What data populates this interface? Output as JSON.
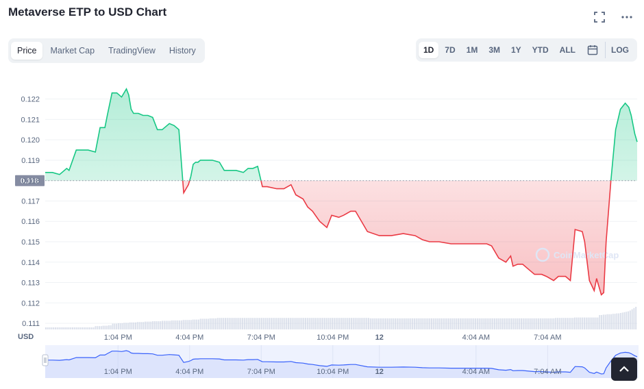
{
  "header": {
    "title": "Metaverse ETP to USD Chart"
  },
  "icons": {
    "fullscreen": "fullscreen-icon",
    "more": "more-icon",
    "calendar": "calendar-icon",
    "scroll_top": "chevron-up-icon",
    "drag_handle": "drag-handle-icon",
    "watermark": "coinmarketcap-logo"
  },
  "tabs": [
    {
      "label": "Price",
      "active": true
    },
    {
      "label": "Market Cap",
      "active": false
    },
    {
      "label": "TradingView",
      "active": false
    },
    {
      "label": "History",
      "active": false
    }
  ],
  "ranges": [
    {
      "label": "1D",
      "active": true
    },
    {
      "label": "7D",
      "active": false
    },
    {
      "label": "1M",
      "active": false
    },
    {
      "label": "3M",
      "active": false
    },
    {
      "label": "1Y",
      "active": false
    },
    {
      "label": "YTD",
      "active": false
    },
    {
      "label": "ALL",
      "active": false
    }
  ],
  "log_label": "LOG",
  "watermark_text": "CoinMarketCap",
  "colors": {
    "up": "#16c784",
    "down": "#ea3943",
    "navigator": "#3861fb",
    "volume": "#cfd6e4",
    "ref_badge": "#858ca2"
  },
  "chart_data": {
    "type": "line",
    "currency_label": "USD",
    "y_ticks": [
      0.111,
      0.112,
      0.113,
      0.114,
      0.115,
      0.116,
      0.117,
      0.118,
      0.119,
      0.12,
      0.121,
      0.122
    ],
    "ylim": [
      0.1107,
      0.1235
    ],
    "reference_price": 0.118,
    "reference_label": "0.118",
    "x_ticks": [
      {
        "label": "1:04 PM",
        "t": 3.05
      },
      {
        "label": "4:04 PM",
        "t": 6.05
      },
      {
        "label": "7:04 PM",
        "t": 9.05
      },
      {
        "label": "10:04 PM",
        "t": 12.05
      },
      {
        "label": "12",
        "t": 14.0
      },
      {
        "label": "4:04 AM",
        "t": 18.05
      },
      {
        "label": "7:04 AM",
        "t": 21.05
      }
    ],
    "x_range": [
      0,
      24.8
    ],
    "series": [
      {
        "x": [
          0,
          0.3,
          0.6,
          0.9,
          1.0,
          1.3,
          1.5,
          1.8,
          2.1,
          2.3,
          2.5,
          2.6,
          2.8,
          3.0,
          3.2,
          3.4,
          3.5,
          3.6,
          3.7,
          3.9,
          4.1,
          4.3,
          4.5,
          4.7,
          4.9,
          5.2,
          5.4,
          5.6,
          5.8,
          6.0,
          6.1,
          6.2,
          6.3,
          6.4,
          6.5,
          6.8,
          7.0,
          7.3,
          7.5,
          7.8,
          8.0,
          8.3,
          8.5,
          8.7,
          8.9,
          9.1,
          9.3,
          9.7,
          10.0,
          10.3,
          10.5,
          10.8,
          11.0,
          11.2,
          11.5,
          11.8,
          12.0,
          12.3,
          12.5,
          12.8,
          13.0,
          13.5,
          14.0,
          14.5,
          15.0,
          15.5,
          15.8,
          16.1,
          16.5,
          17.0,
          17.5,
          18.0,
          18.5,
          18.7,
          19.0,
          19.3,
          19.5,
          19.6,
          19.8,
          20.0,
          20.3,
          20.5,
          20.8,
          21.0,
          21.3,
          21.5,
          21.8,
          22.0,
          22.2,
          22.5,
          22.6,
          22.8,
          23.0,
          23.1,
          23.3,
          23.4,
          23.5,
          23.7,
          23.9,
          24.1,
          24.3,
          24.45,
          24.55,
          24.7,
          24.8
        ],
        "values": [
          0.1184,
          0.1184,
          0.1183,
          0.1186,
          0.1185,
          0.1195,
          0.1195,
          0.1195,
          0.1194,
          0.1206,
          0.1206,
          0.1212,
          0.1223,
          0.1223,
          0.1221,
          0.1225,
          0.1222,
          0.1215,
          0.1213,
          0.1213,
          0.1212,
          0.1212,
          0.1211,
          0.1205,
          0.1205,
          0.1208,
          0.1207,
          0.1205,
          0.1174,
          0.1178,
          0.1182,
          0.1188,
          0.1189,
          0.1189,
          0.119,
          0.119,
          0.119,
          0.1189,
          0.1185,
          0.1185,
          0.1185,
          0.1184,
          0.1186,
          0.1186,
          0.1187,
          0.1177,
          0.1177,
          0.1176,
          0.1176,
          0.1178,
          0.1173,
          0.1171,
          0.1167,
          0.1165,
          0.116,
          0.1157,
          0.1163,
          0.1162,
          0.1163,
          0.1165,
          0.1165,
          0.1155,
          0.1153,
          0.1153,
          0.1154,
          0.1153,
          0.1151,
          0.115,
          0.115,
          0.1149,
          0.1149,
          0.1149,
          0.1149,
          0.1148,
          0.1142,
          0.114,
          0.1143,
          0.1138,
          0.1139,
          0.1139,
          0.1136,
          0.1134,
          0.1134,
          0.1133,
          0.1131,
          0.1133,
          0.1133,
          0.1131,
          0.1156,
          0.1155,
          0.115,
          0.1131,
          0.1126,
          0.1132,
          0.1124,
          0.1125,
          0.115,
          0.118,
          0.1205,
          0.1215,
          0.1218,
          0.1216,
          0.1212,
          0.1203,
          0.1199
        ]
      }
    ],
    "volume": [
      0.05,
      0.05,
      0.05,
      0.05,
      0.05,
      0.05,
      0.05,
      0.05,
      0.05,
      0.05,
      0.05,
      0.05,
      0.05,
      0.05,
      0.05,
      0.05,
      0.05,
      0.05,
      0.05,
      0.05,
      0.05,
      0.05,
      0.05,
      0.05,
      0.05,
      0.05,
      0.08,
      0.08,
      0.08,
      0.08,
      0.09,
      0.09,
      0.09,
      0.1,
      0.1,
      0.14,
      0.14,
      0.14,
      0.15,
      0.15,
      0.15,
      0.16,
      0.16,
      0.16,
      0.17,
      0.17,
      0.17,
      0.17,
      0.18,
      0.18,
      0.18,
      0.18,
      0.19,
      0.19,
      0.19,
      0.19,
      0.2,
      0.2,
      0.2,
      0.2,
      0.2,
      0.21,
      0.21,
      0.21,
      0.21,
      0.21,
      0.22,
      0.22,
      0.22,
      0.22,
      0.22,
      0.22,
      0.23,
      0.23,
      0.23,
      0.23,
      0.23,
      0.24,
      0.24,
      0.24,
      0.24,
      0.26,
      0.26,
      0.26,
      0.26,
      0.26,
      0.27,
      0.27,
      0.27,
      0.27,
      0.28,
      0.28,
      0.28,
      0.28,
      0.28,
      0.28,
      0.28,
      0.28,
      0.28,
      0.28,
      0.28,
      0.28,
      0.28,
      0.28,
      0.28,
      0.28,
      0.28,
      0.28,
      0.28,
      0.28,
      0.28,
      0.28,
      0.28,
      0.28,
      0.28,
      0.28,
      0.28,
      0.28,
      0.28,
      0.28,
      0.28,
      0.28,
      0.28,
      0.28,
      0.28,
      0.28,
      0.28,
      0.28,
      0.28,
      0.28,
      0.28,
      0.28,
      0.28,
      0.28,
      0.28,
      0.28,
      0.28,
      0.28,
      0.28,
      0.28,
      0.28,
      0.28,
      0.28,
      0.28,
      0.28,
      0.28,
      0.28,
      0.28,
      0.28,
      0.28,
      0.28,
      0.28,
      0.28,
      0.28,
      0.28,
      0.28,
      0.28,
      0.28,
      0.28,
      0.28,
      0.28,
      0.28,
      0.28,
      0.28,
      0.28,
      0.28,
      0.28,
      0.28,
      0.28,
      0.28,
      0.27,
      0.27,
      0.27,
      0.27,
      0.27,
      0.27,
      0.27,
      0.27,
      0.27,
      0.27,
      0.27,
      0.27,
      0.27,
      0.27,
      0.27,
      0.27,
      0.27,
      0.27,
      0.27,
      0.27,
      0.27,
      0.27,
      0.27,
      0.27,
      0.27,
      0.27,
      0.27,
      0.27,
      0.27,
      0.27,
      0.27,
      0.27,
      0.27,
      0.27,
      0.27,
      0.27,
      0.27,
      0.27,
      0.27,
      0.27,
      0.27,
      0.27,
      0.27,
      0.27,
      0.27,
      0.27,
      0.27,
      0.27,
      0.27,
      0.27,
      0.27,
      0.27,
      0.27,
      0.27,
      0.27,
      0.27,
      0.27,
      0.27,
      0.27,
      0.27,
      0.27,
      0.27,
      0.27,
      0.27,
      0.27,
      0.27,
      0.27,
      0.27,
      0.27,
      0.27,
      0.27,
      0.27,
      0.27,
      0.27,
      0.27,
      0.27,
      0.27,
      0.27,
      0.27,
      0.27,
      0.27,
      0.27,
      0.27,
      0.27,
      0.27,
      0.27,
      0.27,
      0.27,
      0.27,
      0.27,
      0.27,
      0.27,
      0.27,
      0.27,
      0.27,
      0.27,
      0.27,
      0.28,
      0.28,
      0.28,
      0.28,
      0.28,
      0.28,
      0.28,
      0.28,
      0.28,
      0.28,
      0.29,
      0.29,
      0.29,
      0.29,
      0.29,
      0.29,
      0.29,
      0.29,
      0.29,
      0.29,
      0.29,
      0.29,
      0.29,
      0.35,
      0.35,
      0.36,
      0.36,
      0.37,
      0.37,
      0.37,
      0.38,
      0.38,
      0.39,
      0.39,
      0.4,
      0.41,
      0.42,
      0.43,
      0.44,
      0.46,
      0.49,
      0.52,
      0.55
    ],
    "grid": true
  }
}
